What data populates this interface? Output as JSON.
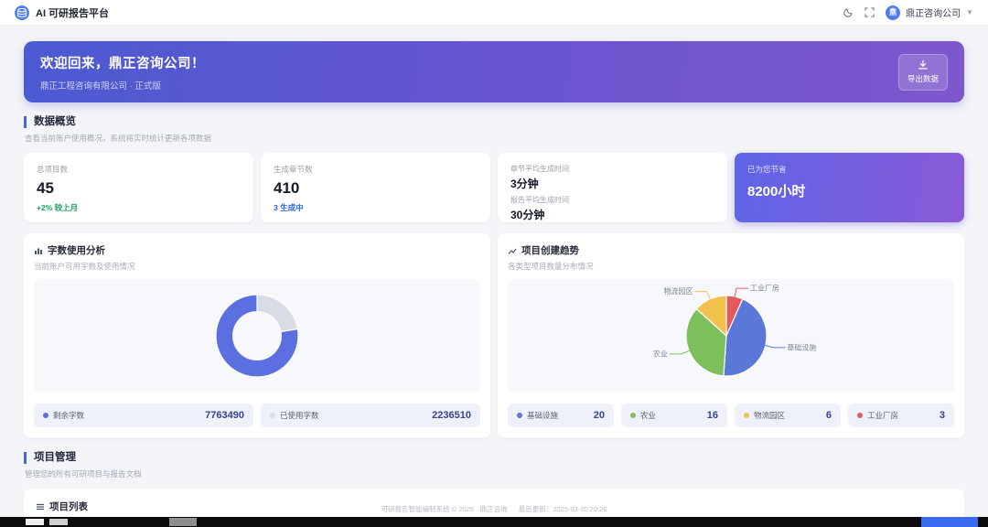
{
  "app": {
    "title": "AI 可研报告平台"
  },
  "topbar": {
    "company": "鼎正咨询公司",
    "avatar_text": "鼎"
  },
  "banner": {
    "title": "欢迎回来，鼎正咨询公司！",
    "subtitle": "鼎正工程咨询有限公司 · 正式版",
    "export_label": "导出数据"
  },
  "overview": {
    "title": "数据概览",
    "subtitle": "查看当前账户使用概况，系统将实时统计更新各项数据",
    "cards": [
      {
        "label": "总项目数",
        "value": "45",
        "delta": "+2% 较上月",
        "delta_color": "#17a05e"
      },
      {
        "label": "生成章节数",
        "value": "410",
        "delta": "3 生成中",
        "delta_color": "#2563eb"
      },
      {
        "label": "章节平均生成时间",
        "value": "3分钟",
        "label2": "报告平均生成时间",
        "value2": "30分钟"
      },
      {
        "label": "已为您节省",
        "value": "8200小时"
      }
    ]
  },
  "word_usage": {
    "icon": "bar-chart-icon",
    "title": "字数使用分析",
    "subtitle": "当前账户可用字数及使用情况",
    "legend": [
      {
        "label": "剩余字数",
        "value": "7763490",
        "color": "#5b6fe0"
      },
      {
        "label": "已使用字数",
        "value": "2236510",
        "color": "#d8dce6"
      }
    ]
  },
  "project_dist": {
    "icon": "trend-icon",
    "title": "项目创建趋势",
    "subtitle": "各类型项目数量分布情况",
    "legend": [
      {
        "label": "基础设施",
        "value": "20",
        "color": "#5a78d8"
      },
      {
        "label": "农业",
        "value": "16",
        "color": "#7dbf5a"
      },
      {
        "label": "物流园区",
        "value": "6",
        "color": "#f2c14e"
      },
      {
        "label": "工业厂房",
        "value": "3",
        "color": "#e05c5c"
      }
    ]
  },
  "projects": {
    "title": "项目管理",
    "subtitle": "管理您的所有可研项目与报告文档",
    "list_title": "项目列表"
  },
  "footer": {
    "copyright": "可研报告智能编制系统 © 2025 · 鼎正咨询",
    "updated": "最后更新：2025-03-20 20:26"
  },
  "chart_data": [
    {
      "type": "pie",
      "variant": "donut",
      "title": "字数使用分析",
      "unit": "字",
      "total": 10000000,
      "hole_ratio": 0.6,
      "legend_position": "bottom",
      "slices": [
        {
          "label": "已使用字数",
          "value": 2236510,
          "color": "#d8dce6"
        },
        {
          "label": "剩余字数",
          "value": 7763490,
          "color": "#5b6fe0"
        }
      ]
    },
    {
      "type": "pie",
      "title": "项目创建趋势",
      "unit": "个",
      "total": 45,
      "labels": "callout",
      "legend_position": "bottom",
      "slices": [
        {
          "label": "工业厂房",
          "value": 3,
          "color": "#e05c5c"
        },
        {
          "label": "基础设施",
          "value": 20,
          "color": "#5a78d8"
        },
        {
          "label": "农业",
          "value": 16,
          "color": "#7dbf5a"
        },
        {
          "label": "物流园区",
          "value": 6,
          "color": "#f2c14e"
        }
      ]
    }
  ]
}
